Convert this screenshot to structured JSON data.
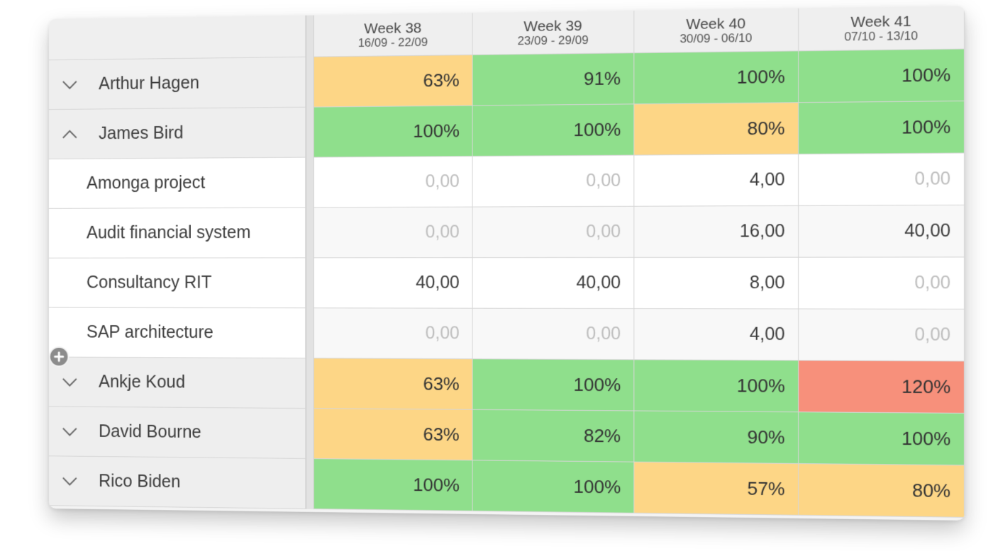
{
  "weeks": [
    {
      "name": "Week 38",
      "range": "16/09 - 22/09"
    },
    {
      "name": "Week 39",
      "range": "23/09 - 29/09"
    },
    {
      "name": "Week 40",
      "range": "30/09 - 06/10"
    },
    {
      "name": "Week 41",
      "range": "07/10 - 13/10"
    }
  ],
  "colors": {
    "green": "#8fdf8c",
    "yellow": "#fdd686",
    "red": "#f7907b"
  },
  "rows": [
    {
      "type": "person",
      "name": "Arthur Hagen",
      "expanded": false,
      "chevron_icon": "chevron-down-icon",
      "values": [
        {
          "text": "63%",
          "status": "yellow"
        },
        {
          "text": "91%",
          "status": "green"
        },
        {
          "text": "100%",
          "status": "green"
        },
        {
          "text": "100%",
          "status": "green"
        }
      ]
    },
    {
      "type": "person",
      "name": "James Bird",
      "expanded": true,
      "chevron_icon": "chevron-up-icon",
      "values": [
        {
          "text": "100%",
          "status": "green"
        },
        {
          "text": "100%",
          "status": "green"
        },
        {
          "text": "80%",
          "status": "yellow"
        },
        {
          "text": "100%",
          "status": "green"
        }
      ]
    },
    {
      "type": "project",
      "name": "Amonga project",
      "values": [
        {
          "text": "0,00",
          "zero": true
        },
        {
          "text": "0,00",
          "zero": true
        },
        {
          "text": "4,00",
          "zero": false
        },
        {
          "text": "0,00",
          "zero": true
        }
      ]
    },
    {
      "type": "project",
      "name": "Audit financial system",
      "values": [
        {
          "text": "0,00",
          "zero": true
        },
        {
          "text": "0,00",
          "zero": true
        },
        {
          "text": "16,00",
          "zero": false
        },
        {
          "text": "40,00",
          "zero": false
        }
      ]
    },
    {
      "type": "project",
      "name": "Consultancy RIT",
      "values": [
        {
          "text": "40,00",
          "zero": false
        },
        {
          "text": "40,00",
          "zero": false
        },
        {
          "text": "8,00",
          "zero": false
        },
        {
          "text": "0,00",
          "zero": true
        }
      ]
    },
    {
      "type": "project",
      "name": "SAP architecture",
      "values": [
        {
          "text": "0,00",
          "zero": true
        },
        {
          "text": "0,00",
          "zero": true
        },
        {
          "text": "4,00",
          "zero": false
        },
        {
          "text": "0,00",
          "zero": true
        }
      ]
    },
    {
      "type": "person",
      "name": "Ankje Koud",
      "expanded": false,
      "chevron_icon": "chevron-down-icon",
      "values": [
        {
          "text": "63%",
          "status": "yellow"
        },
        {
          "text": "100%",
          "status": "green"
        },
        {
          "text": "100%",
          "status": "green"
        },
        {
          "text": "120%",
          "status": "red"
        }
      ]
    },
    {
      "type": "person",
      "name": "David Bourne",
      "expanded": false,
      "chevron_icon": "chevron-down-icon",
      "values": [
        {
          "text": "63%",
          "status": "yellow"
        },
        {
          "text": "82%",
          "status": "green"
        },
        {
          "text": "90%",
          "status": "green"
        },
        {
          "text": "100%",
          "status": "green"
        }
      ]
    },
    {
      "type": "person",
      "name": "Rico Biden",
      "expanded": false,
      "chevron_icon": "chevron-down-icon",
      "values": [
        {
          "text": "100%",
          "status": "green"
        },
        {
          "text": "100%",
          "status": "green"
        },
        {
          "text": "57%",
          "status": "yellow"
        },
        {
          "text": "80%",
          "status": "yellow"
        }
      ]
    }
  ],
  "add_button_icon": "plus-circle-icon"
}
